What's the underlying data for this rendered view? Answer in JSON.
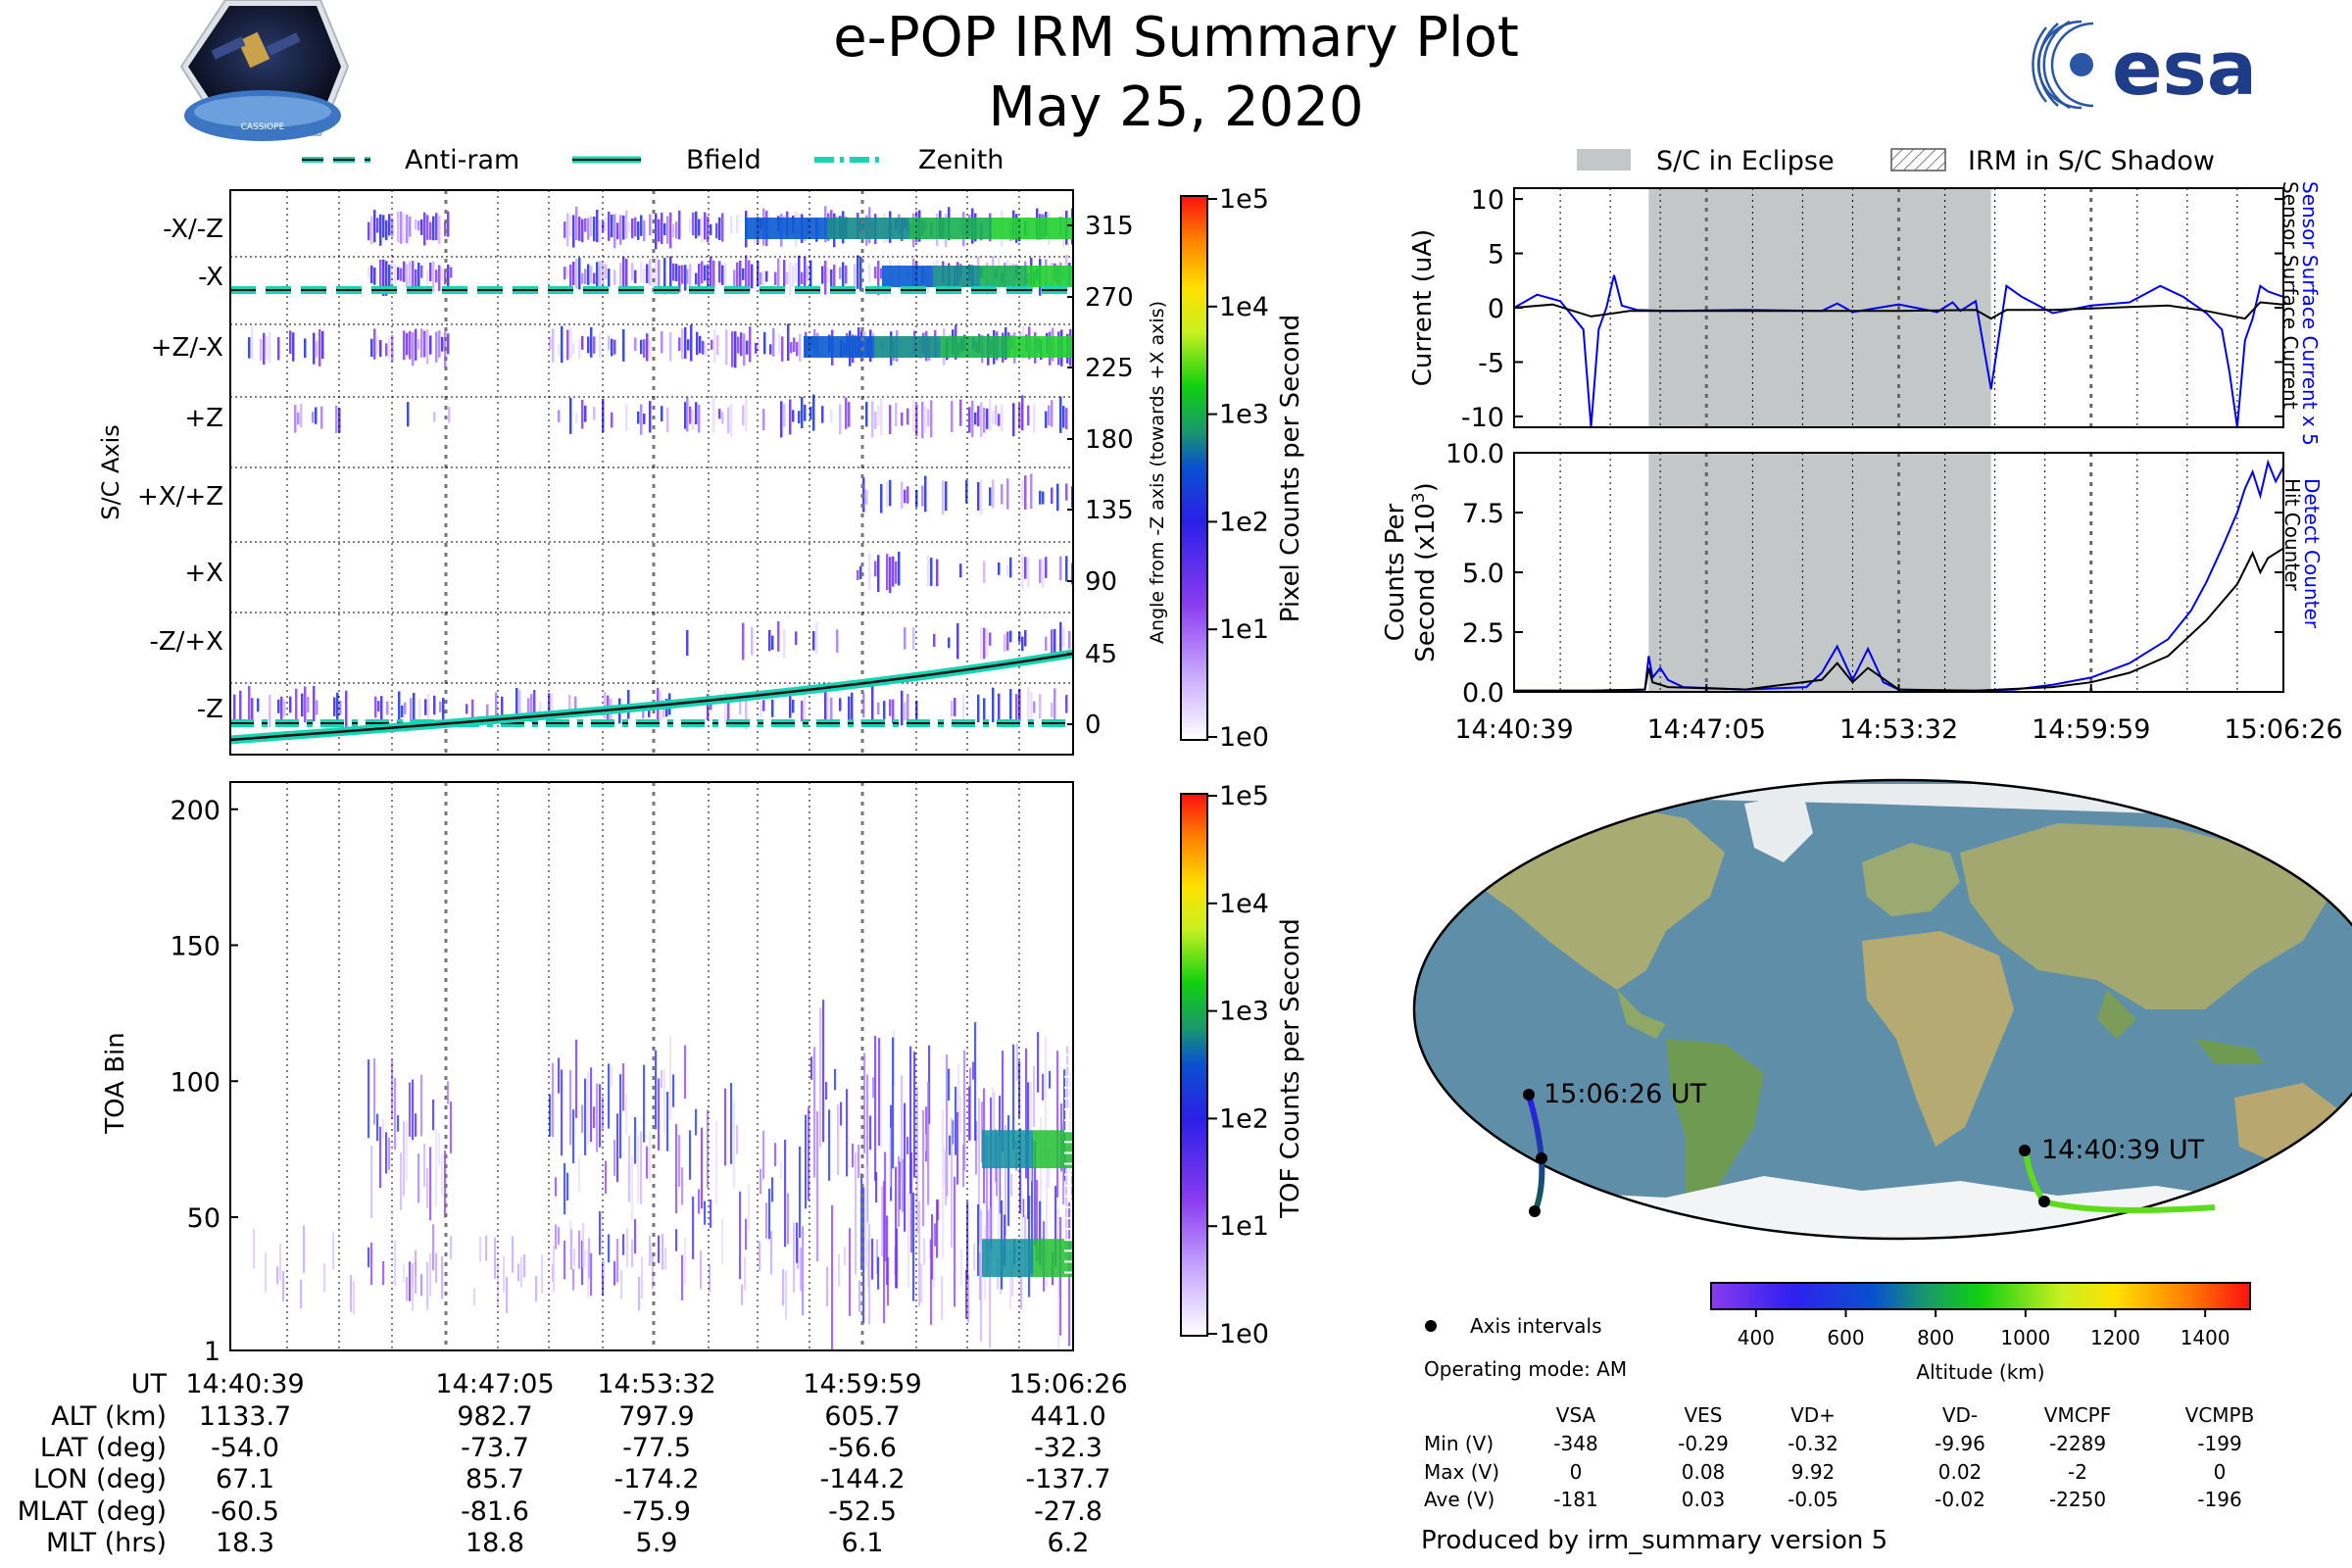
{
  "header": {
    "title": "e-POP IRM Summary Plot",
    "date": "May 25, 2020",
    "mission_logo_text": "CASSIOPE",
    "agency_logo_text": "esa"
  },
  "colors": {
    "accent_cyan": "#17d4b4",
    "detector_blue": "#0000ee",
    "eclipse_gray": "#c4c7c8",
    "ocean": "#5f8fa8",
    "land": "#9aa870",
    "ice": "#f2f4f6"
  },
  "chart_data": [
    {
      "type": "heatmap",
      "name": "S/C axis pixel angle distribution",
      "ylabel": "S/C Axis",
      "right_ylabel": "Angle from -Z axis (towards +X axis)",
      "axis_rows": [
        "-X/-Z",
        "-X",
        "+Z/-X",
        "+Z",
        "+X/+Z",
        "+X",
        "-Z/+X",
        "-Z"
      ],
      "angle_ticks": [
        "315",
        "270",
        "225",
        "180",
        "135",
        "90",
        "45",
        "0"
      ],
      "legend": [
        "Anti-ram",
        "Bfield",
        "Zenith"
      ],
      "colorbar": {
        "label": "Pixel Counts per Second",
        "ticks": [
          "1e5",
          "1e4",
          "1e3",
          "1e2",
          "1e1",
          "1e0"
        ]
      },
      "bfield_angle_deg": {
        "start": -10,
        "end": 45
      },
      "antiram_angle_deg": 270,
      "zenith_angle_deg": 0
    },
    {
      "type": "heatmap",
      "name": "TOA spectrogram",
      "ylabel": "TOA Bin",
      "y_ticks": [
        "200",
        "150",
        "100",
        "50",
        "1"
      ],
      "ylim": [
        1,
        210
      ],
      "colorbar": {
        "label": "TOF Counts per Second",
        "ticks": [
          "1e5",
          "1e4",
          "1e3",
          "1e2",
          "1e1",
          "1e0"
        ]
      }
    },
    {
      "type": "line",
      "name": "Sensor surface current",
      "ylabel": "Current (uA)",
      "ylim": [
        -11,
        11
      ],
      "y_ticks": [
        "10",
        "5",
        "0",
        "-5",
        "-10"
      ],
      "series": [
        {
          "name": "Sensor Surface Current x 5",
          "color": "#0000ee",
          "x": [
            0,
            0.03,
            0.06,
            0.09,
            0.1,
            0.11,
            0.12,
            0.13,
            0.14,
            0.16,
            0.2,
            0.3,
            0.4,
            0.42,
            0.44,
            0.5,
            0.55,
            0.57,
            0.58,
            0.6,
            0.62,
            0.64,
            0.66,
            0.7,
            0.75,
            0.8,
            0.84,
            0.87,
            0.9,
            0.92,
            0.93,
            0.94,
            0.95,
            0.96,
            0.97,
            0.98,
            1.0
          ],
          "y": [
            0,
            1.2,
            0.6,
            -2,
            -11,
            -2,
            0,
            3,
            0.2,
            -0.2,
            -0.3,
            -0.2,
            -0.3,
            0.4,
            -0.4,
            0.3,
            -0.4,
            0.5,
            -0.3,
            0.6,
            -7.5,
            2,
            1,
            -0.5,
            0.2,
            0.5,
            2,
            1,
            -0.5,
            -2,
            -6,
            -11,
            -3,
            -1,
            2,
            1.5,
            1
          ]
        },
        {
          "name": "Sensor Surface Current",
          "color": "#000000",
          "x": [
            0,
            0.05,
            0.1,
            0.15,
            0.3,
            0.5,
            0.6,
            0.62,
            0.64,
            0.7,
            0.85,
            0.9,
            0.95,
            0.97,
            1.0
          ],
          "y": [
            0,
            0.3,
            -0.8,
            -0.3,
            -0.3,
            -0.3,
            -0.2,
            -1,
            -0.2,
            -0.2,
            0.2,
            -0.3,
            -1,
            0.5,
            0.3
          ]
        }
      ]
    },
    {
      "type": "line",
      "name": "Counts",
      "ylabel": "Counts Per Second (x10^3)",
      "ylim": [
        0,
        10
      ],
      "y_ticks": [
        "10.0",
        "7.5",
        "5.0",
        "2.5",
        "0.0"
      ],
      "x_ticks": [
        "14:40:39",
        "14:47:05",
        "14:53:32",
        "14:59:59",
        "15:06:26"
      ],
      "shaded_interval": {
        "label": "S/C in Eclipse",
        "x": [
          0.175,
          0.62
        ]
      },
      "legend": [
        "S/C in Eclipse",
        "IRM in S/C Shadow"
      ],
      "series": [
        {
          "name": "Detect Counter",
          "color": "#0000ee",
          "x": [
            0,
            0.1,
            0.17,
            0.175,
            0.18,
            0.19,
            0.2,
            0.22,
            0.3,
            0.38,
            0.4,
            0.42,
            0.44,
            0.46,
            0.48,
            0.5,
            0.55,
            0.6,
            0.65,
            0.7,
            0.75,
            0.8,
            0.85,
            0.88,
            0.9,
            0.92,
            0.94,
            0.95,
            0.96,
            0.97,
            0.98,
            0.99,
            1.0
          ],
          "y": [
            0.05,
            0.05,
            0.1,
            1.5,
            0.6,
            1,
            0.5,
            0.2,
            0.1,
            0.2,
            0.8,
            1.9,
            0.5,
            1.8,
            0.4,
            0.1,
            0.05,
            0.05,
            0.1,
            0.3,
            0.6,
            1.2,
            2.2,
            3.4,
            4.6,
            6,
            7.5,
            8.5,
            9.2,
            8.2,
            9.6,
            8.8,
            9.4
          ]
        },
        {
          "name": "Hit Counter",
          "color": "#000000",
          "x": [
            0,
            0.1,
            0.17,
            0.175,
            0.18,
            0.2,
            0.3,
            0.4,
            0.42,
            0.44,
            0.46,
            0.5,
            0.6,
            0.7,
            0.75,
            0.8,
            0.85,
            0.9,
            0.94,
            0.96,
            0.97,
            0.98,
            1.0
          ],
          "y": [
            0.05,
            0.05,
            0.1,
            1,
            0.4,
            0.2,
            0.1,
            0.5,
            1.2,
            0.4,
            1,
            0.1,
            0.05,
            0.2,
            0.4,
            0.8,
            1.5,
            3,
            4.5,
            5.8,
            5,
            5.6,
            6
          ]
        }
      ],
      "right_labels": [
        "Detect Counter",
        "Hit Counter"
      ],
      "top_right_labels": [
        "Sensor Surface Current x 5",
        "Sensor Surface Current"
      ]
    }
  ],
  "time_axis": {
    "labels": [
      "UT",
      "ALT (km)",
      "LAT (deg)",
      "LON (deg)",
      "MLAT (deg)",
      "MLT (hrs)"
    ],
    "columns": [
      [
        "14:40:39",
        "1133.7",
        "-54.0",
        "67.1",
        "-60.5",
        "18.3"
      ],
      [
        "14:47:05",
        "982.7",
        "-73.7",
        "85.7",
        "-81.6",
        "18.8"
      ],
      [
        "14:53:32",
        "797.9",
        "-77.5",
        "-174.2",
        "-75.9",
        "5.9"
      ],
      [
        "14:59:59",
        "605.7",
        "-56.6",
        "-144.2",
        "-52.5",
        "6.1"
      ],
      [
        "15:06:26",
        "441.0",
        "-32.3",
        "-137.7",
        "-27.8",
        "6.2"
      ]
    ]
  },
  "map": {
    "start_label": "14:40:39 UT",
    "end_label": "15:06:26 UT",
    "altitude_colorbar": {
      "label": "Altitude (km)",
      "ticks": [
        "400",
        "600",
        "800",
        "1000",
        "1200",
        "1400"
      ]
    },
    "legend_axis_intervals": "Axis intervals",
    "operating_mode": "Operating mode: AM"
  },
  "voltage_table": {
    "headers": [
      "VSA",
      "VES",
      "VD+",
      "VD-",
      "VMCPF",
      "VCMPB"
    ],
    "rows": [
      {
        "label": "Min (V)",
        "values": [
          "-348",
          "-0.29",
          "-0.32",
          "-9.96",
          "-2289",
          "-199"
        ]
      },
      {
        "label": "Max (V)",
        "values": [
          "0",
          "0.08",
          "9.92",
          "0.02",
          "-2",
          "0"
        ]
      },
      {
        "label": "Ave (V)",
        "values": [
          "-181",
          "0.03",
          "-0.05",
          "-0.02",
          "-2250",
          "-196"
        ]
      }
    ]
  },
  "footer": "Produced by irm_summary version 5"
}
